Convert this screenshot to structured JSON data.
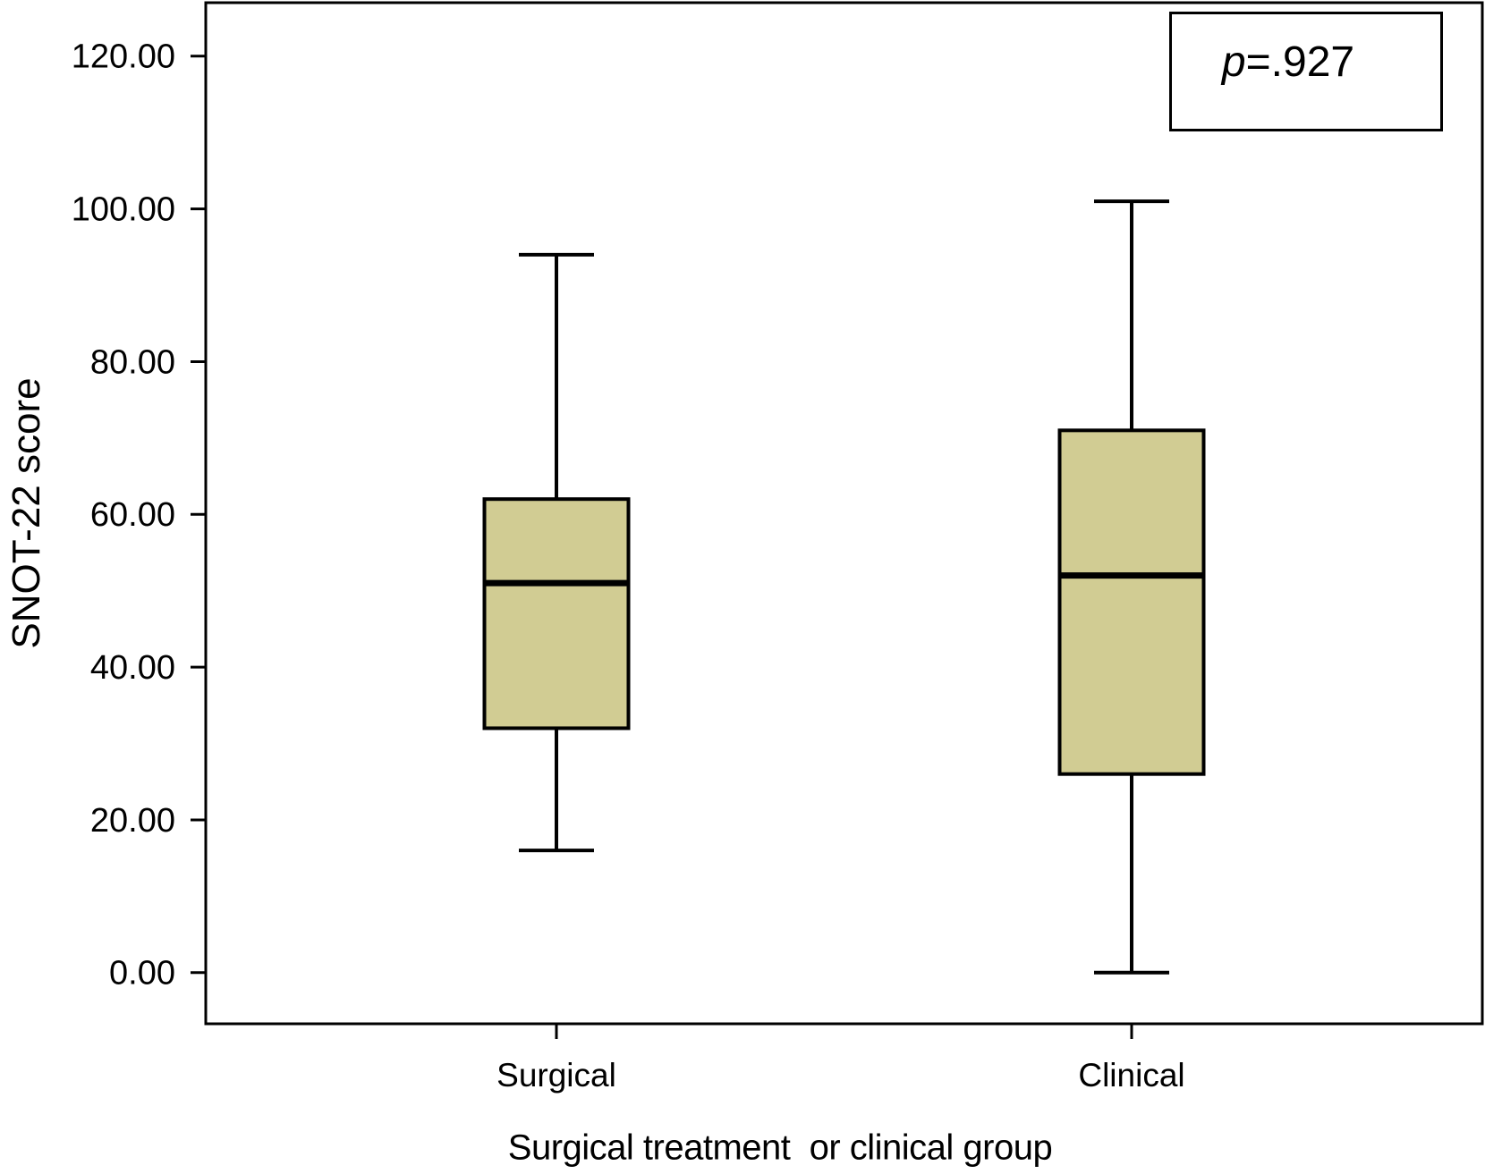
{
  "annotation": {
    "symbol": "p",
    "value": "=.927"
  },
  "chart_data": {
    "type": "boxplot",
    "title": "",
    "xlabel": "Surgical treatment  or clinical group",
    "ylabel": "SNOT-22 score",
    "categories": [
      "Surgical",
      "Clinical"
    ],
    "category_positions": [
      0.2747,
      0.7253
    ],
    "yticks": [
      0,
      20,
      40,
      60,
      80,
      100,
      120
    ],
    "ytick_labels": [
      "0.00",
      "20.00",
      "40.00",
      "60.00",
      "80.00",
      "100.00",
      "120.00"
    ],
    "ylim": [
      -6.7,
      127.0
    ],
    "grid": false,
    "legend": "none",
    "annotation_text": "p=.927",
    "annotation_position": "top-right",
    "box_fill": "#d1cc93",
    "stroke": "#000000",
    "series": [
      {
        "name": "Surgical",
        "whisker_low": 16,
        "q1": 32,
        "median": 51,
        "q3": 62,
        "whisker_high": 94,
        "outliers": []
      },
      {
        "name": "Clinical",
        "whisker_low": 0,
        "q1": 26,
        "median": 52,
        "q3": 71,
        "whisker_high": 101,
        "outliers": []
      }
    ]
  }
}
